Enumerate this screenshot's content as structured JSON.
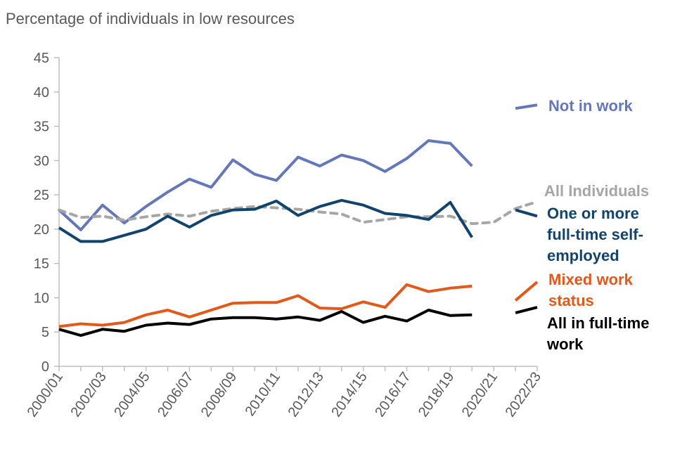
{
  "chart_data": {
    "type": "line",
    "title": "Percentage of individuals in low resources",
    "xlabel": "",
    "ylabel": "",
    "ylim": [
      0,
      45
    ],
    "yticks": [
      0,
      5,
      10,
      15,
      20,
      25,
      30,
      35,
      40,
      45
    ],
    "x": [
      "2000/01",
      "2001/02",
      "2002/03",
      "2003/04",
      "2004/05",
      "2005/06",
      "2006/07",
      "2007/08",
      "2008/09",
      "2009/10",
      "2010/11",
      "2011/12",
      "2012/13",
      "2013/14",
      "2014/15",
      "2015/16",
      "2016/17",
      "2017/18",
      "2018/19",
      "2019/20",
      "2020/21",
      "2021/22",
      "2022/23"
    ],
    "xtick_labels": [
      "2000/01",
      "2002/03",
      "2004/05",
      "2006/07",
      "2008/09",
      "2010/11",
      "2012/13",
      "2014/15",
      "2016/17",
      "2018/19",
      "2020/21",
      "2022/23"
    ],
    "series": [
      {
        "name": "Not in work",
        "label_lines": [
          "Not in work"
        ],
        "color": "#6477b9",
        "dash": false,
        "values": [
          22.8,
          19.9,
          23.5,
          20.9,
          23.3,
          25.4,
          27.3,
          26.1,
          30.1,
          28.0,
          27.1,
          30.5,
          29.2,
          30.8,
          30.0,
          28.4,
          30.3,
          32.9,
          32.5,
          29.2,
          null,
          37.6,
          38.1
        ]
      },
      {
        "name": "All Individuals",
        "label_lines": [
          "All Individuals"
        ],
        "color": "#a6a6a6",
        "dash": true,
        "values": [
          22.8,
          21.7,
          21.9,
          21.3,
          21.8,
          22.2,
          21.9,
          22.6,
          23.0,
          23.3,
          23.1,
          22.9,
          22.5,
          22.2,
          21.0,
          21.4,
          21.8,
          21.8,
          21.9,
          20.8,
          21.0,
          23.0,
          24.0
        ]
      },
      {
        "name": "One or more full-time self-employed",
        "label_lines": [
          "One or more",
          "full-time self-",
          "employed"
        ],
        "color": "#12436d",
        "dash": false,
        "values": [
          20.2,
          18.2,
          18.2,
          19.1,
          20.0,
          21.9,
          20.3,
          22.0,
          22.8,
          22.9,
          24.1,
          22.0,
          23.3,
          24.2,
          23.5,
          22.3,
          22.0,
          21.4,
          23.9,
          18.8,
          null,
          22.8,
          21.9
        ]
      },
      {
        "name": "Mixed work status",
        "label_lines": [
          "Mixed work",
          "status"
        ],
        "color": "#e05a1c",
        "dash": false,
        "values": [
          5.8,
          6.2,
          6.0,
          6.4,
          7.5,
          8.2,
          7.2,
          8.2,
          9.2,
          9.3,
          9.3,
          10.3,
          8.5,
          8.4,
          9.4,
          8.6,
          11.9,
          10.9,
          11.4,
          11.7,
          null,
          9.6,
          12.3
        ]
      },
      {
        "name": "All in full-time work",
        "label_lines": [
          "All in full-time",
          "work"
        ],
        "color": "#000000",
        "dash": false,
        "values": [
          5.4,
          4.5,
          5.4,
          5.1,
          6.0,
          6.3,
          6.1,
          6.9,
          7.1,
          7.1,
          6.9,
          7.2,
          6.7,
          8.0,
          6.4,
          7.3,
          6.6,
          8.2,
          7.4,
          7.5,
          null,
          7.8,
          8.6
        ]
      }
    ]
  }
}
